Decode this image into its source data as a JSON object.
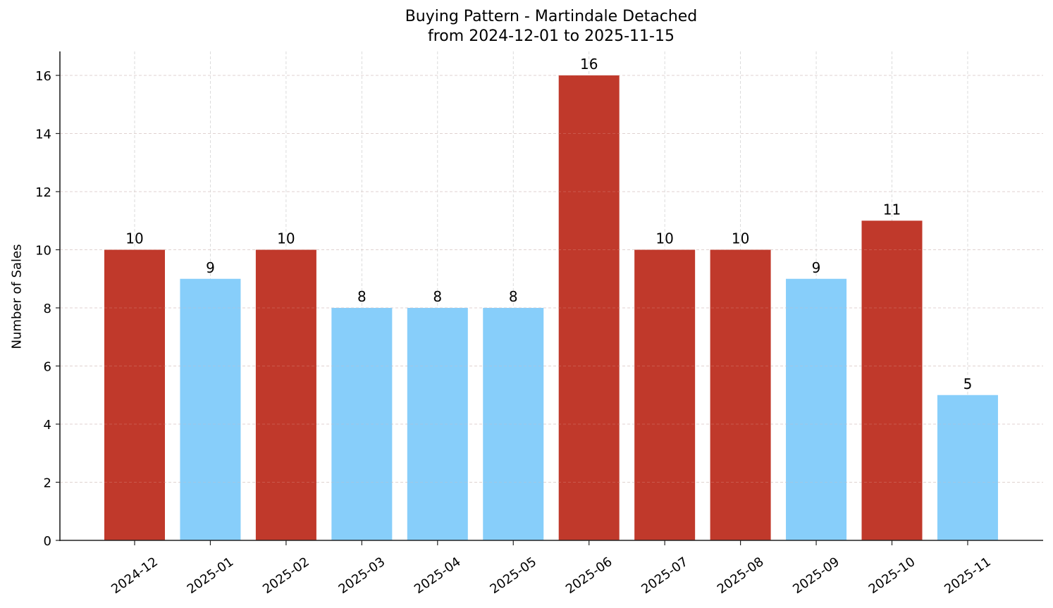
{
  "chart_data": {
    "type": "bar",
    "title": "Buying Pattern - Martindale Detached",
    "subtitle": "from 2024-12-01 to 2025-11-15",
    "xlabel": "",
    "ylabel": "Number of Sales",
    "categories": [
      "2024-12",
      "2025-01",
      "2025-02",
      "2025-03",
      "2025-04",
      "2025-05",
      "2025-06",
      "2025-07",
      "2025-08",
      "2025-09",
      "2025-10",
      "2025-11"
    ],
    "values": [
      10,
      9,
      10,
      8,
      8,
      8,
      16,
      10,
      10,
      9,
      11,
      5
    ],
    "bar_colors": [
      "#C0392B",
      "#87CEFA",
      "#C0392B",
      "#87CEFA",
      "#87CEFA",
      "#87CEFA",
      "#C0392B",
      "#C0392B",
      "#C0392B",
      "#87CEFA",
      "#C0392B",
      "#87CEFA"
    ],
    "ylim": [
      0,
      16.8
    ],
    "yticks": [
      0,
      2,
      4,
      6,
      8,
      10,
      12,
      14,
      16
    ],
    "grid": true,
    "grid_style": "dashed",
    "data_labels": true,
    "legend": null,
    "xtick_rotation": 35
  },
  "colors": {
    "high": "#C0392B",
    "low": "#87CEFA",
    "grid": "#d3d3d3",
    "axis": "#222222"
  }
}
